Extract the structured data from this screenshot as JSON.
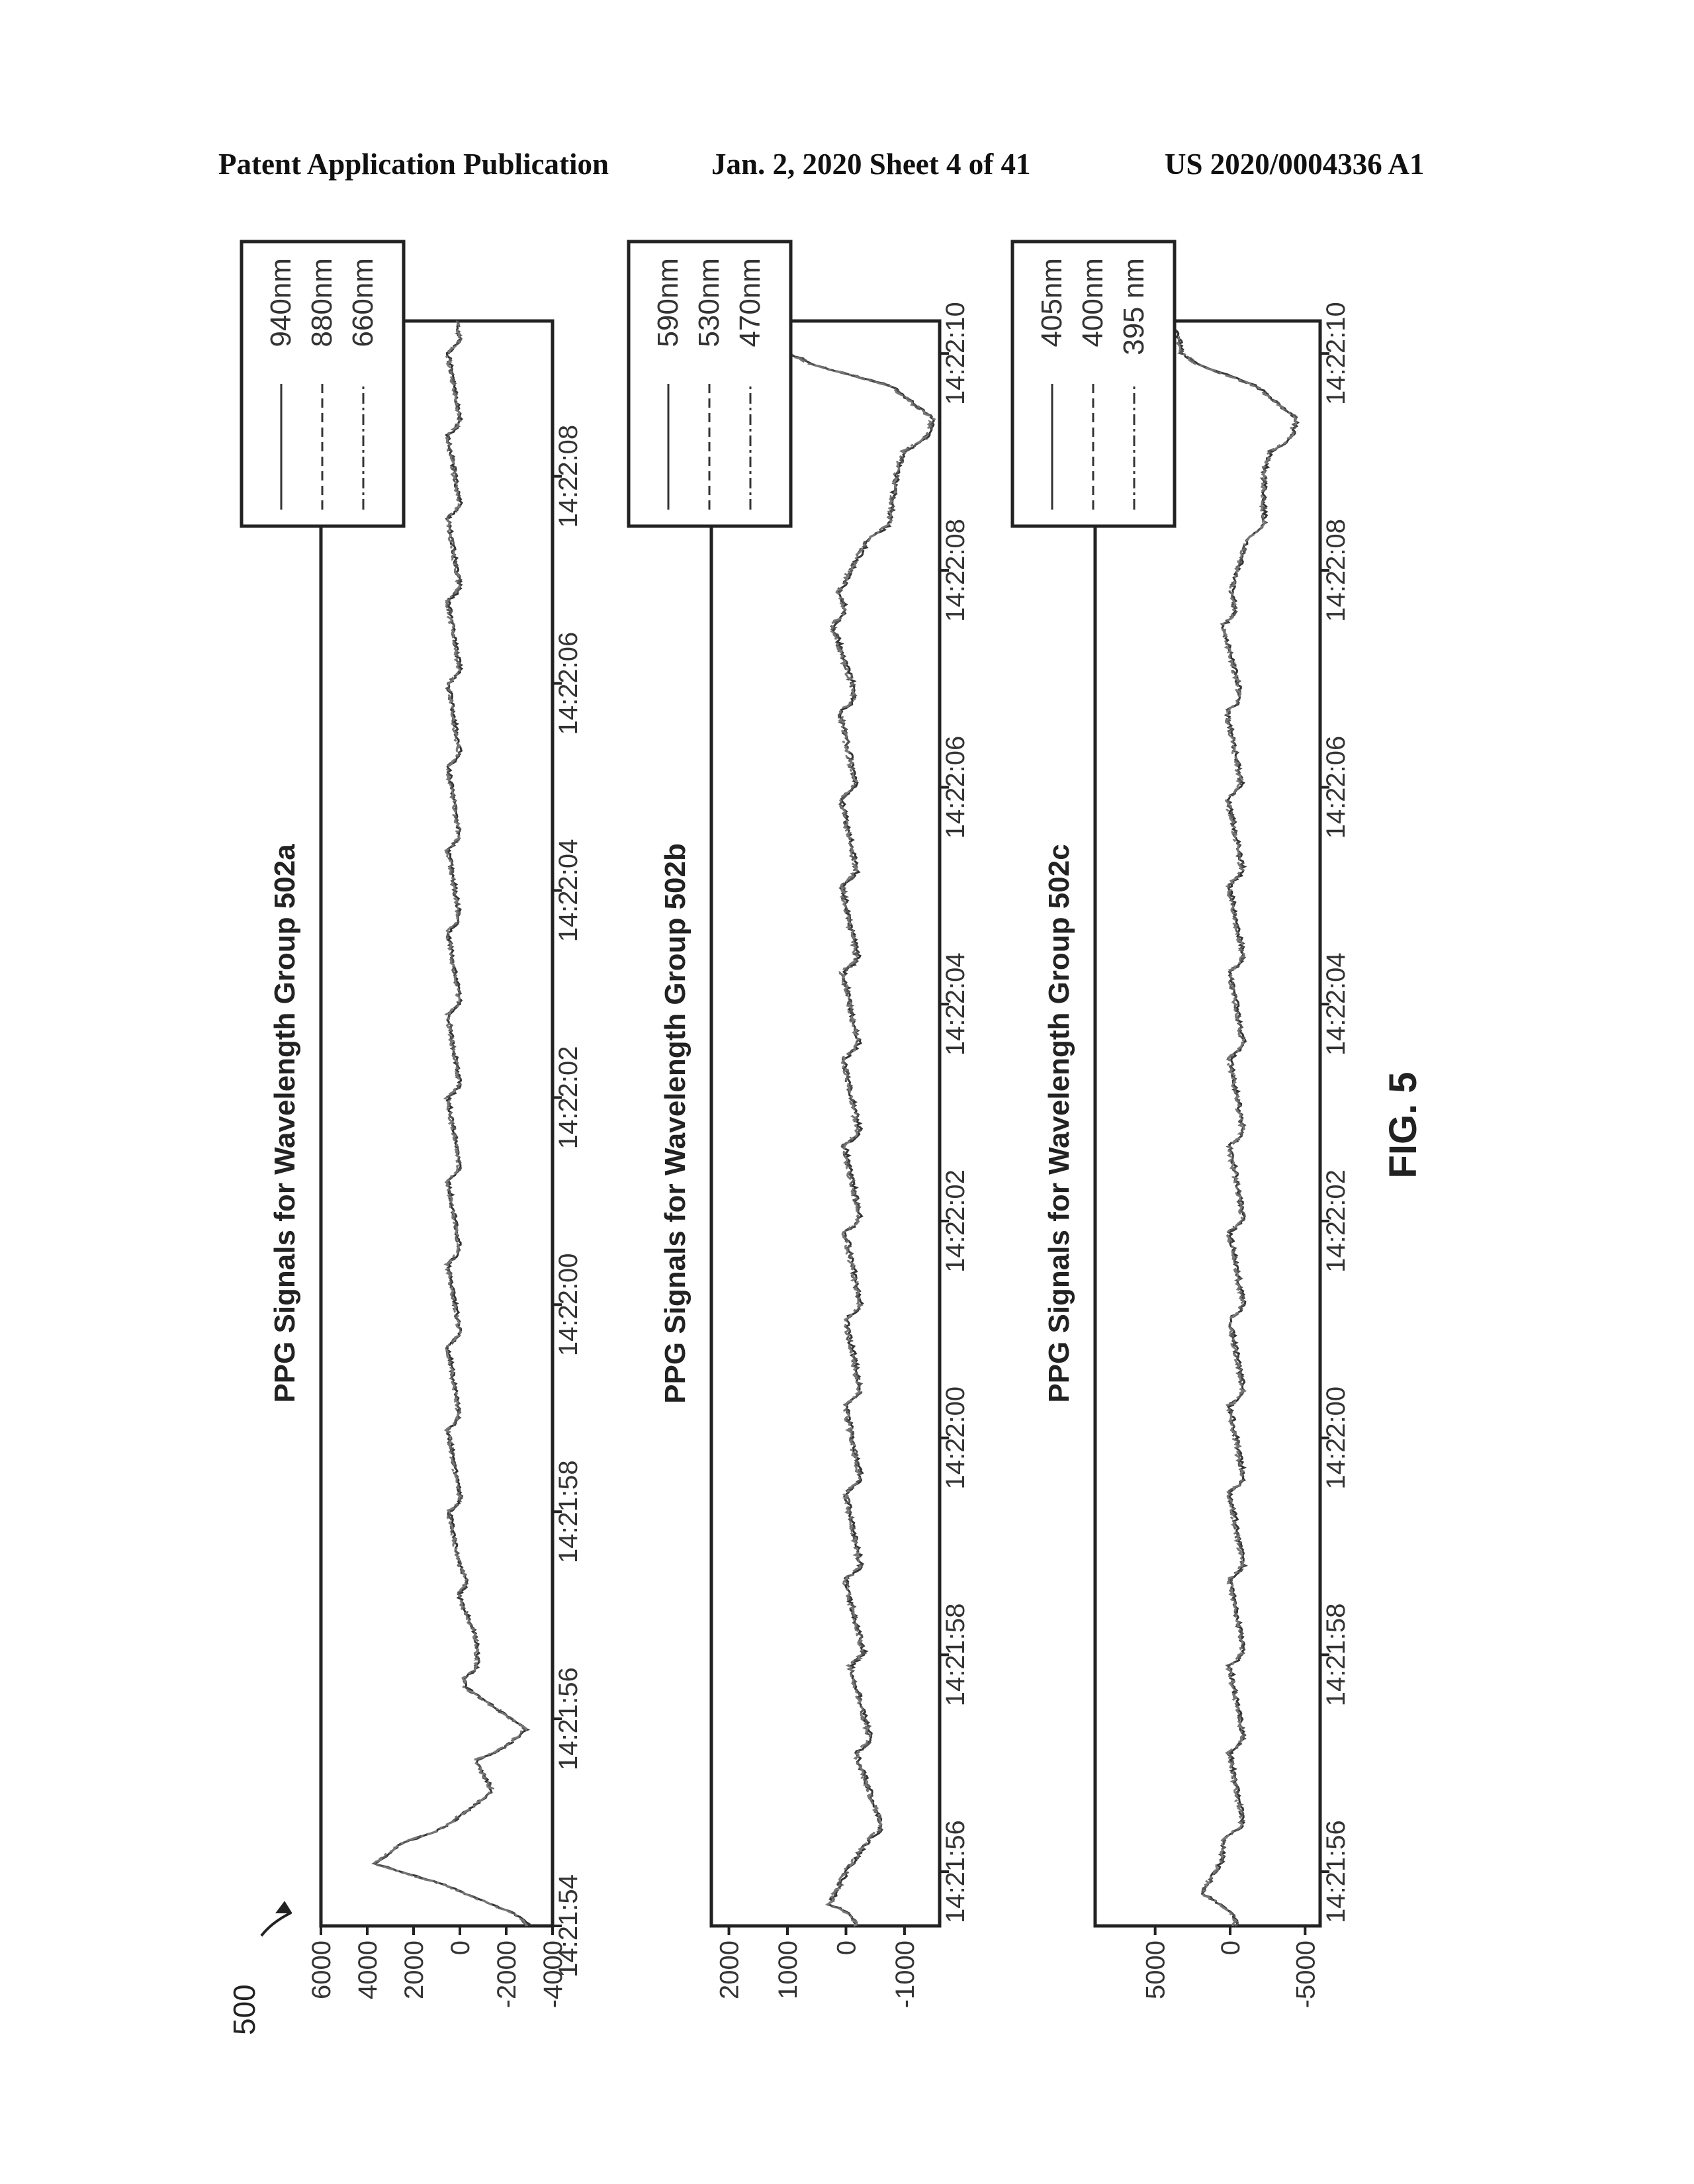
{
  "header": {
    "left": "Patent Application Publication",
    "middle": "Jan. 2, 2020   Sheet 4 of 41",
    "right": "US 2020/0004336 A1"
  },
  "figure": {
    "ref_label": "500",
    "caption": "FIG. 5"
  },
  "chart_data": [
    {
      "type": "line",
      "title": "PPG Signals for Wavelength Group 502a",
      "xlabel": "",
      "ylabel": "",
      "x_ticks": [
        "14:21:54",
        "14:21:56",
        "14:21:58",
        "14:22:00",
        "14:22:02",
        "14:22:04",
        "14:22:06",
        "14:22:08"
      ],
      "y_ticks": [
        6000,
        4000,
        2000,
        0,
        -2000,
        -4000
      ],
      "y_tick_labels": [
        "6000",
        "4000",
        "2000",
        "0",
        "-2000",
        "-4000"
      ],
      "xlim": [
        "14:21:54",
        "14:22:09.5"
      ],
      "ylim": [
        -4000,
        6000
      ],
      "legend_position": "right",
      "series": [
        {
          "name": "940nm",
          "style": "solid"
        },
        {
          "name": "880nm",
          "style": "dashed"
        },
        {
          "name": "660nm",
          "style": "dash-dot"
        }
      ],
      "signal": {
        "x_start_sec": 0,
        "x_end_sec": 15.5,
        "points": [
          [
            0.0,
            -3000
          ],
          [
            0.4,
            1000
          ],
          [
            0.6,
            3800
          ],
          [
            0.8,
            2500
          ],
          [
            1.0,
            800
          ],
          [
            1.3,
            -1200
          ],
          [
            1.6,
            -700
          ],
          [
            1.9,
            -2500
          ],
          [
            2.3,
            -200
          ],
          [
            2.8,
            -400
          ],
          [
            3.5,
            400
          ],
          [
            4.5,
            500
          ],
          [
            6.0,
            500
          ],
          [
            8.0,
            500
          ],
          [
            10.0,
            500
          ],
          [
            12.0,
            500
          ],
          [
            14.0,
            500
          ],
          [
            15.3,
            500
          ]
        ],
        "oscillation_amplitude": 500,
        "beat_period_sec": 0.8
      }
    },
    {
      "type": "line",
      "title": "PPG Signals for Wavelength Group 502b",
      "xlabel": "",
      "ylabel": "",
      "x_ticks": [
        "14:21:56",
        "14:21:58",
        "14:22:00",
        "14:22:02",
        "14:22:04",
        "14:22:06",
        "14:22:08",
        "14:22:10"
      ],
      "y_ticks": [
        2000,
        1000,
        0,
        -1000
      ],
      "y_tick_labels": [
        "2000",
        "1000",
        "0",
        "-1000"
      ],
      "xlim": [
        "14:21:55.5",
        "14:22:10.3"
      ],
      "ylim": [
        -1600,
        2300
      ],
      "legend_position": "right",
      "series": [
        {
          "name": "590nm",
          "style": "solid"
        },
        {
          "name": "530nm",
          "style": "dashed"
        },
        {
          "name": "470nm",
          "style": "dash-dot"
        }
      ],
      "signal": {
        "x_start_sec": 0,
        "x_end_sec": 14.8,
        "points": [
          [
            0.0,
            -200
          ],
          [
            0.2,
            500
          ],
          [
            0.5,
            100
          ],
          [
            0.8,
            -400
          ],
          [
            1.5,
            -200
          ],
          [
            3.0,
            0
          ],
          [
            6.0,
            0
          ],
          [
            9.0,
            50
          ],
          [
            11.5,
            100
          ],
          [
            12.3,
            300
          ],
          [
            12.8,
            -400
          ],
          [
            13.4,
            -800
          ],
          [
            13.9,
            -1300
          ],
          [
            14.2,
            -700
          ],
          [
            14.5,
            1200
          ],
          [
            14.8,
            1500
          ]
        ],
        "oscillation_amplitude": 250,
        "beat_period_sec": 0.8
      }
    },
    {
      "type": "line",
      "title": "PPG Signals for Wavelength Group 502c",
      "xlabel": "",
      "ylabel": "",
      "x_ticks": [
        "14:21:56",
        "14:21:58",
        "14:22:00",
        "14:22:02",
        "14:22:04",
        "14:22:06",
        "14:22:08",
        "14:22:10"
      ],
      "y_ticks": [
        5000,
        0,
        -5000
      ],
      "y_tick_labels": [
        "5000",
        "0",
        "-5000"
      ],
      "xlim": [
        "14:21:55.5",
        "14:22:10.3"
      ],
      "ylim": [
        -6000,
        9000
      ],
      "legend_position": "right",
      "series": [
        {
          "name": "405nm",
          "style": "solid"
        },
        {
          "name": "400nm",
          "style": "dashed"
        },
        {
          "name": "395 nm",
          "style": "dash-dot"
        }
      ],
      "signal": {
        "x_start_sec": 0,
        "x_end_sec": 14.8,
        "points": [
          [
            0.0,
            -400
          ],
          [
            0.3,
            2500
          ],
          [
            0.6,
            800
          ],
          [
            1.0,
            0
          ],
          [
            3.0,
            0
          ],
          [
            6.0,
            0
          ],
          [
            9.0,
            0
          ],
          [
            11.5,
            200
          ],
          [
            12.3,
            600
          ],
          [
            12.8,
            -1200
          ],
          [
            13.4,
            -2000
          ],
          [
            13.9,
            -3800
          ],
          [
            14.2,
            -1500
          ],
          [
            14.5,
            4000
          ],
          [
            14.8,
            4500
          ]
        ],
        "oscillation_amplitude": 900,
        "beat_period_sec": 0.8
      }
    }
  ]
}
